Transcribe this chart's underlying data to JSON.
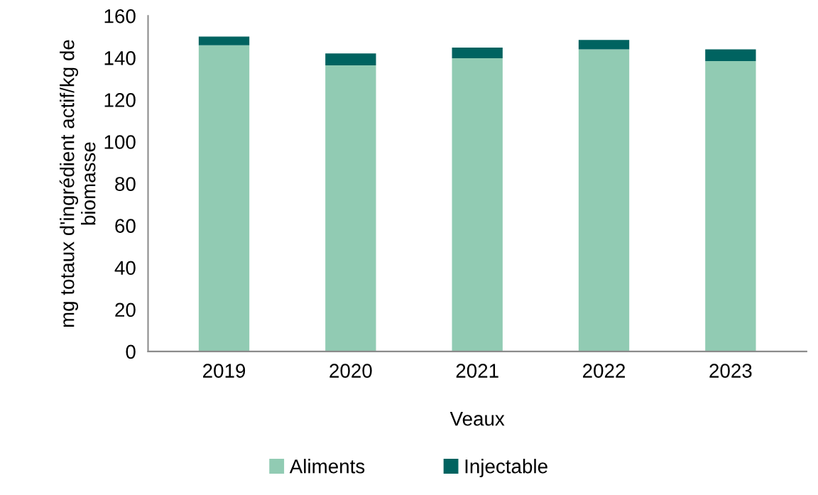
{
  "chart_data": {
    "type": "bar",
    "stacked": true,
    "xlabel": "Veaux",
    "ylabel": "mg totaux d'ingrédient actif/kg de biomasse",
    "categories": [
      "2019",
      "2020",
      "2021",
      "2022",
      "2023"
    ],
    "series": [
      {
        "name": "Aliments",
        "color": "#91cbb3",
        "values": [
          146.0,
          136.4,
          139.8,
          144.0,
          138.4
        ]
      },
      {
        "name": "Injectable",
        "color": "#006360",
        "values": [
          4.1,
          5.7,
          5.1,
          4.5,
          5.6
        ]
      }
    ],
    "ylim": [
      0,
      160
    ],
    "yticks": [
      0,
      20,
      40,
      60,
      80,
      100,
      120,
      140,
      160
    ],
    "grid": false,
    "legend": "bottom"
  }
}
